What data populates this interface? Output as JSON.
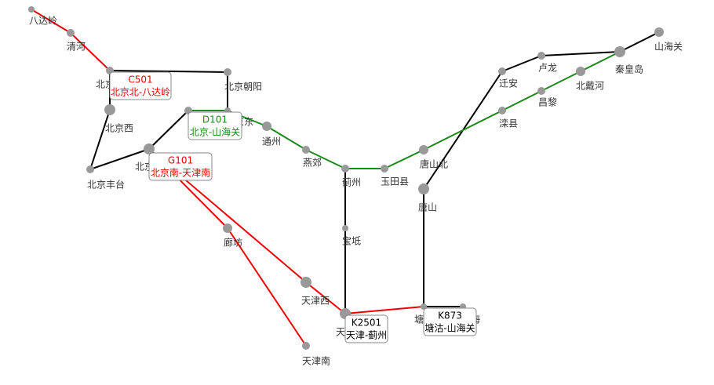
{
  "stations": [
    "八达岭",
    "清河",
    "北京北",
    "北京朝阳",
    "北京西",
    "北京丰台",
    "北京",
    "北京东",
    "北京南",
    "廊坊",
    "天津西",
    "天津南",
    "通州",
    "燕郊",
    "蓟州",
    "玉田县",
    "唐山北",
    "唐山",
    "宝坻",
    "天津",
    "塘沽",
    "滨海",
    "迁安",
    "卢龙",
    "秦皇岛",
    "山海关",
    "北戴河",
    "昌黎",
    "滦县"
  ],
  "trains": [
    {
      "code": "C501",
      "route": "北京北-八达岭"
    },
    {
      "code": "D101",
      "route": "北京-山海关"
    },
    {
      "code": "G101",
      "route": "北京南-天津南"
    },
    {
      "code": "K2501",
      "route": "天津-蓟州"
    },
    {
      "code": "K873",
      "route": "塘沽-山海关"
    }
  ]
}
